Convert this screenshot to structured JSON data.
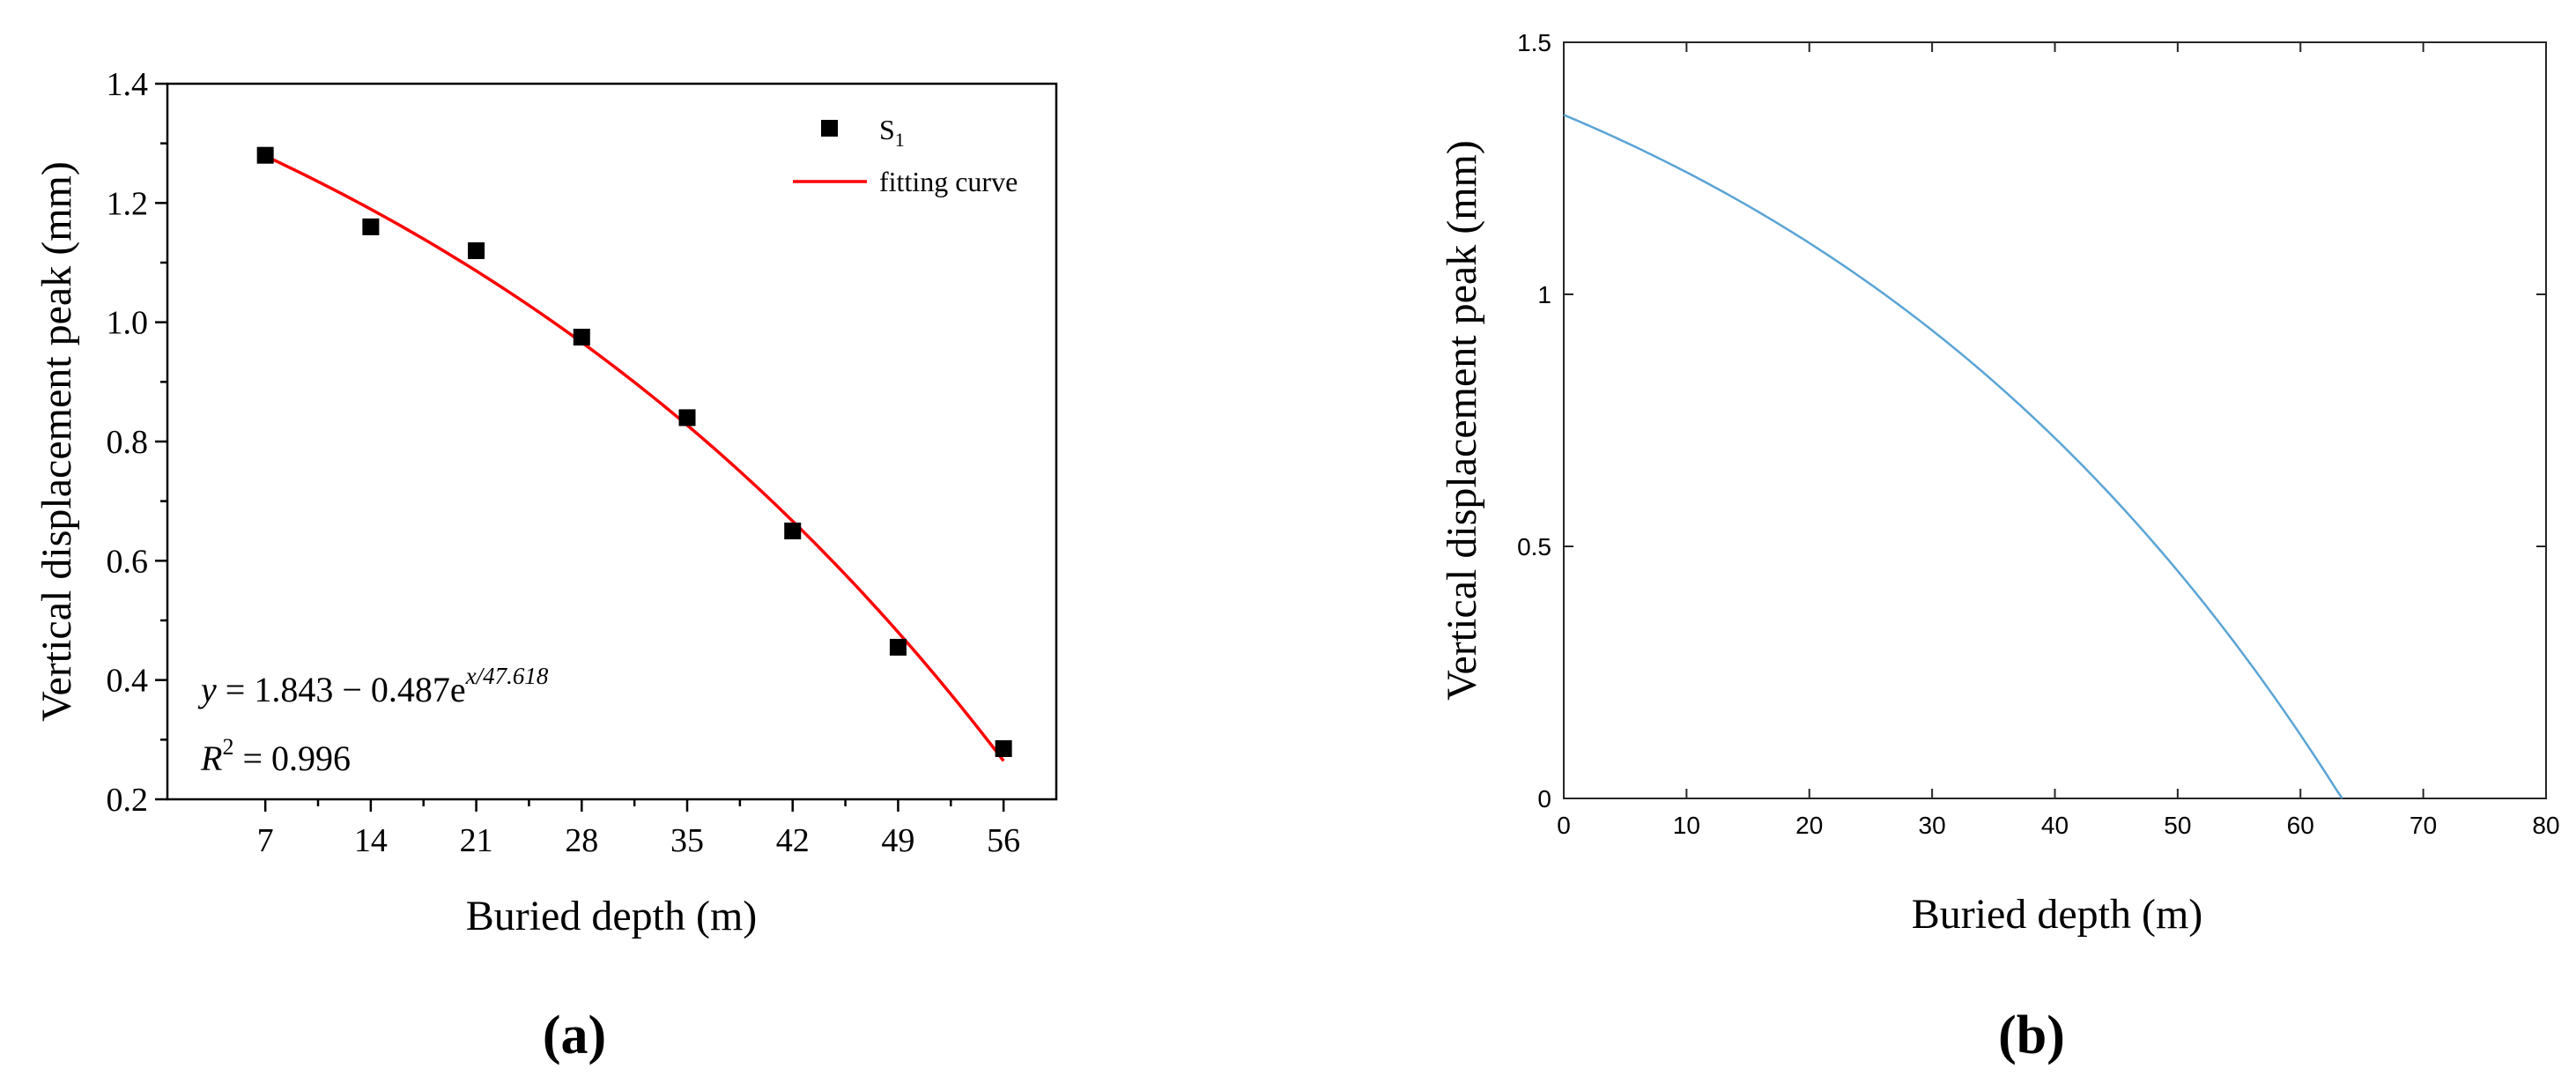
{
  "chart_data": [
    {
      "panel_label": "(a)",
      "type": "scatter",
      "xlabel": "Buried depth (m)",
      "ylabel": "Vertical displacement peak (mm)",
      "xticks": [
        7,
        14,
        21,
        28,
        35,
        42,
        49,
        56
      ],
      "yticks": [
        0.2,
        0.4,
        0.6,
        0.8,
        1.0,
        1.2,
        1.4
      ],
      "ytick_labels": [
        "0.2",
        "0.4",
        "0.6",
        "0.8",
        "1.0",
        "1.2",
        "1.4"
      ],
      "xlim": [
        0.5,
        59.5
      ],
      "ylim": [
        0.2,
        1.4
      ],
      "grid": false,
      "legend_position": "top-right",
      "series": [
        {
          "name": "S1",
          "legend_main": "S",
          "legend_sub": "1",
          "kind": "scatter",
          "marker": "square",
          "color": "#000000",
          "x": [
            7,
            14,
            21,
            28,
            35,
            42,
            49,
            56
          ],
          "y": [
            1.28,
            1.16,
            1.12,
            0.975,
            0.84,
            0.65,
            0.455,
            0.285
          ]
        },
        {
          "name": "fitting curve",
          "kind": "line",
          "color": "#ff0000",
          "equation": {
            "a": 1.843,
            "b": 0.487,
            "c": 47.618
          },
          "x_range": [
            7,
            56
          ]
        }
      ],
      "annotation": {
        "eq_lhs": "y",
        "eq_rhs": " = 1.843 − 0.487e",
        "eq_exp": "x/47.618",
        "r2_base": "R",
        "r2_sup": "2",
        "r2_rhs": " = 0.996"
      }
    },
    {
      "panel_label": "(b)",
      "type": "line",
      "xlabel": "Buried depth (m)",
      "ylabel": "Vertical displacement peak (mm)",
      "xticks": [
        0,
        10,
        20,
        30,
        40,
        50,
        60,
        70,
        80
      ],
      "yticks": [
        0,
        0.5,
        1,
        1.5
      ],
      "ytick_labels": [
        "0",
        "0.5",
        "1",
        "1.5"
      ],
      "xlim": [
        0,
        80
      ],
      "ylim": [
        0,
        1.5
      ],
      "grid": false,
      "series": [
        {
          "kind": "line",
          "color": "#5aa4d6",
          "equation": {
            "a": 1.843,
            "b": 0.487,
            "c": 47.618
          },
          "x_range": [
            0,
            63.4
          ]
        }
      ]
    }
  ]
}
